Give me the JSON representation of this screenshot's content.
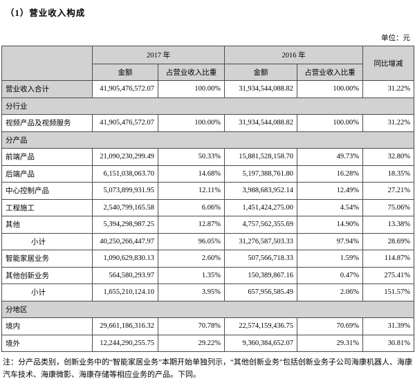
{
  "page": {
    "title": "（1）营业收入构成",
    "unit_label": "单位：元"
  },
  "table": {
    "header": {
      "year_2017": "2017 年",
      "year_2016": "2016 年",
      "amount_2017": "金额",
      "ratio_2017": "占营业收入比重",
      "amount_2016": "金额",
      "ratio_2016": "占营业收入比重",
      "yoy": "同比增减"
    },
    "rows": [
      {
        "type": "data",
        "label": "营业收入合计",
        "label_shaded": true,
        "a2017": "41,905,476,572.07",
        "r2017": "100.00%",
        "a2016": "31,934,544,088.82",
        "r2016": "100.00%",
        "yoy": "31.22%"
      },
      {
        "type": "section",
        "label": "分行业"
      },
      {
        "type": "data",
        "label": "视频产品及视频服务",
        "a2017": "41,905,476,572.07",
        "r2017": "100.00%",
        "a2016": "31,934,544,088.82",
        "r2016": "100.00%",
        "yoy": "31.22%"
      },
      {
        "type": "section",
        "label": "分产品"
      },
      {
        "type": "data",
        "label": "前端产品",
        "a2017": "21,090,230,299.49",
        "r2017": "50.33%",
        "a2016": "15,881,528,158.70",
        "r2016": "49.73%",
        "yoy": "32.80%"
      },
      {
        "type": "data",
        "label": "后端产品",
        "a2017": "6,151,038,063.70",
        "r2017": "14.68%",
        "a2016": "5,197,388,761.80",
        "r2016": "16.28%",
        "yoy": "18.35%"
      },
      {
        "type": "data",
        "label": "中心控制产品",
        "a2017": "5,073,899,931.95",
        "r2017": "12.11%",
        "a2016": "3,988,683,952.14",
        "r2016": "12.49%",
        "yoy": "27.21%"
      },
      {
        "type": "data",
        "label": "工程施工",
        "a2017": "2,540,799,165.58",
        "r2017": "6.06%",
        "a2016": "1,451,424,275.00",
        "r2016": "4.54%",
        "yoy": "75.06%"
      },
      {
        "type": "data",
        "label": "其他",
        "a2017": "5,394,298,987.25",
        "r2017": "12.87%",
        "a2016": "4,757,562,355.69",
        "r2016": "14.90%",
        "yoy": "13.38%"
      },
      {
        "type": "data",
        "label": "小计",
        "indent": true,
        "a2017": "40,250,266,447.97",
        "r2017": "96.05%",
        "a2016": "31,276,587,503.33",
        "r2016": "97.94%",
        "yoy": "28.69%"
      },
      {
        "type": "data",
        "label": "智能家居业务",
        "a2017": "1,090,629,830.13",
        "r2017": "2.60%",
        "a2016": "507,566,718.33",
        "r2016": "1.59%",
        "yoy": "114.87%"
      },
      {
        "type": "data",
        "label": "其他创新业务",
        "a2017": "564,580,293.97",
        "r2017": "1.35%",
        "a2016": "150,389,867.16",
        "r2016": "0.47%",
        "yoy": "275.41%"
      },
      {
        "type": "data",
        "label": "小计",
        "indent": true,
        "a2017": "1,655,210,124.10",
        "r2017": "3.95%",
        "a2016": "657,956,585.49",
        "r2016": "2.06%",
        "yoy": "151.57%"
      },
      {
        "type": "section",
        "label": "分地区"
      },
      {
        "type": "data",
        "label": "境内",
        "a2017": "29,661,186,316.32",
        "r2017": "70.78%",
        "a2016": "22,574,159,436.75",
        "r2016": "70.69%",
        "yoy": "31.39%"
      },
      {
        "type": "data",
        "label": "境外",
        "a2017": "12,244,290,255.75",
        "r2017": "29.22%",
        "a2016": "9,360,384,652.07",
        "r2016": "29.31%",
        "yoy": "30.81%"
      }
    ]
  },
  "note": "注：分产品类别，创新业务中的“智能家居业务”本期开始单独列示，“其他创新业务”包括创新业务子公司海康机器人、海康汽车技术、海康微影、海康存储等相应业务的产品。下同。"
}
